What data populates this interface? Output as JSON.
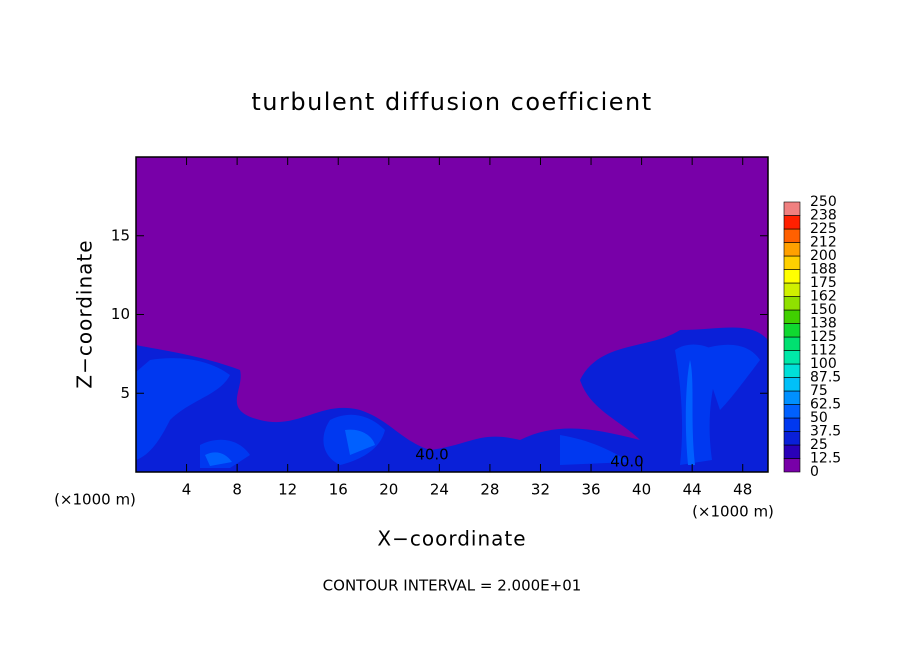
{
  "chart_data": {
    "type": "contour",
    "title": "turbulent diffusion coefficient",
    "x_label": "X−coordinate",
    "y_label": "Z−coordinate",
    "x_unit_label": "(×1000 m)",
    "y_unit_label": "(×1000 m)",
    "footer": "CONTOUR INTERVAL = 2.000E+01",
    "annotations": [
      "40.0",
      "40.0"
    ],
    "xlim": [
      0,
      50
    ],
    "xticks": [
      4,
      8,
      12,
      16,
      20,
      24,
      28,
      32,
      36,
      40,
      44,
      48
    ],
    "ylim": [
      0,
      20
    ],
    "yticks": [
      5,
      10,
      15
    ],
    "levels": [
      0,
      12.5,
      25,
      37.5,
      50,
      62.5,
      75,
      87.5,
      100,
      112,
      125,
      138,
      150,
      162,
      175,
      188,
      200,
      212,
      225,
      238,
      250
    ],
    "colors": [
      "#7800a8",
      "#2a00b8",
      "#0a20d8",
      "#0038f0",
      "#0060ff",
      "#0090ff",
      "#00c0f8",
      "#00e0d8",
      "#00e8a8",
      "#00e070",
      "#10d830",
      "#40d000",
      "#90e000",
      "#d0f000",
      "#ffff00",
      "#ffd000",
      "#ffa000",
      "#ff6000",
      "#ff2000",
      "#f08080"
    ]
  }
}
